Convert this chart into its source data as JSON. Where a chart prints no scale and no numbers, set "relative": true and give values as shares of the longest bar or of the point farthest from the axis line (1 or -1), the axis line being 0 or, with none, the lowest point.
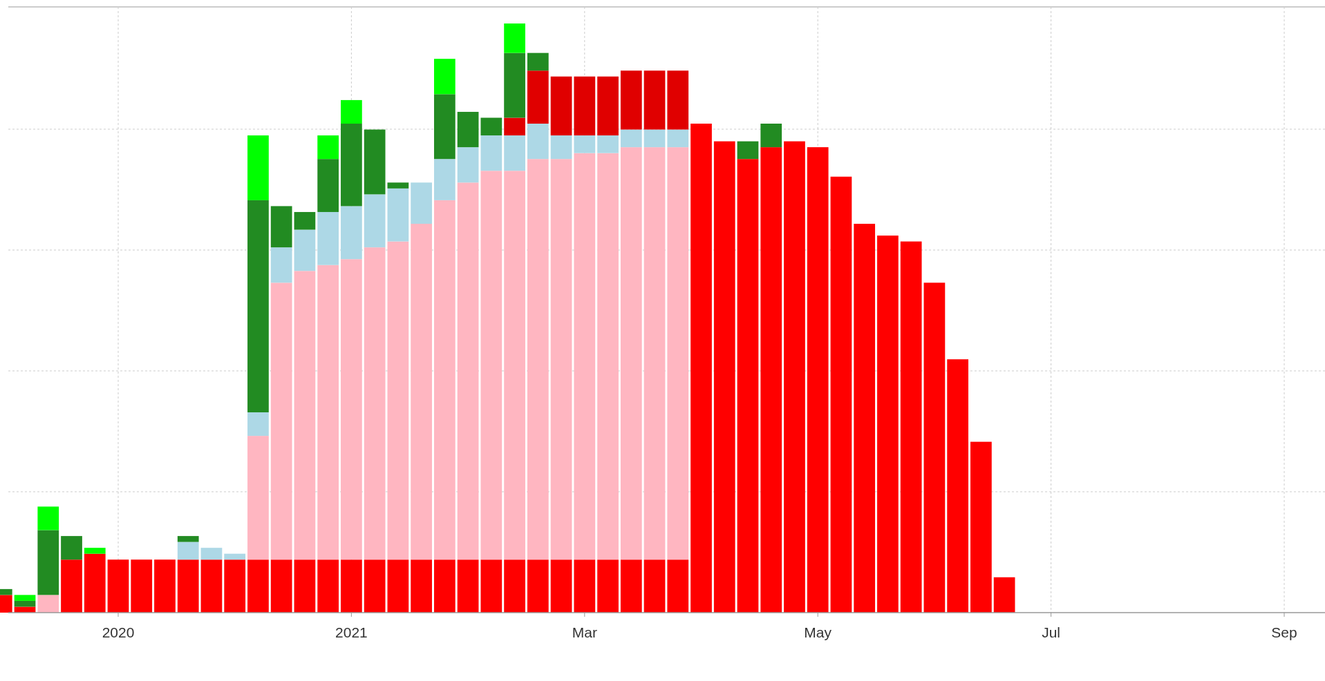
{
  "chart_data": {
    "type": "bar",
    "stacked": true,
    "relative": true,
    "grid": true,
    "categories": [
      null,
      null,
      null,
      null,
      null,
      "2020",
      null,
      null,
      null,
      null,
      null,
      null,
      null,
      null,
      null,
      "2021",
      null,
      null,
      null,
      null,
      null,
      null,
      null,
      null,
      null,
      "Mar",
      null,
      null,
      null,
      null,
      null,
      null,
      null,
      null,
      null,
      "May",
      null,
      null,
      null,
      null,
      null,
      null,
      null,
      null,
      null,
      "Jul",
      null,
      null,
      null,
      null,
      null,
      null,
      null,
      null,
      null,
      "Sep",
      null
    ],
    "series": [
      {
        "color": "#ff0000",
        "values": [
          0.03,
          0.01,
          0,
          0.09,
          0.1,
          0.09,
          0.09,
          0.09,
          0.09,
          0.09,
          0.09,
          0.09,
          0.09,
          0.09,
          0.09,
          0.09,
          0.09,
          0.09,
          0.09,
          0.09,
          0.09,
          0.09,
          0.09,
          0.09,
          0.09,
          0.09,
          0.09,
          0.09,
          0.09,
          0.09,
          0.83,
          0.8,
          0.77,
          0.79,
          0.8,
          0.79,
          0.74,
          0.66,
          0.64,
          0.63,
          0.56,
          0.43,
          0.29,
          0.06,
          0,
          0,
          0,
          0,
          0,
          0,
          0,
          0,
          0,
          0,
          0,
          0,
          0
        ]
      },
      {
        "color": "#ffb6c1",
        "values": [
          0,
          0,
          0.03,
          0,
          0,
          0,
          0,
          0,
          0,
          0,
          0,
          0.21,
          0.47,
          0.49,
          0.5,
          0.51,
          0.53,
          0.54,
          0.57,
          0.61,
          0.64,
          0.66,
          0.66,
          0.68,
          0.68,
          0.69,
          0.69,
          0.7,
          0.7,
          0.7,
          0,
          0,
          0,
          0,
          0,
          0,
          0,
          0,
          0,
          0,
          0,
          0,
          0,
          0,
          0,
          0,
          0,
          0,
          0,
          0,
          0,
          0,
          0,
          0,
          0,
          0,
          0
        ]
      },
      {
        "color": "#add8e6",
        "values": [
          0,
          0,
          0,
          0,
          0,
          0,
          0,
          0,
          0.03,
          0.02,
          0.01,
          0.04,
          0.06,
          0.07,
          0.09,
          0.09,
          0.09,
          0.09,
          0.07,
          0.07,
          0.06,
          0.06,
          0.06,
          0.06,
          0.04,
          0.03,
          0.03,
          0.03,
          0.03,
          0.03,
          0,
          0,
          0,
          0,
          0,
          0,
          0,
          0,
          0,
          0,
          0,
          0,
          0,
          0,
          0,
          0,
          0,
          0,
          0,
          0,
          0,
          0,
          0,
          0,
          0,
          0,
          0
        ]
      },
      {
        "color": "#e00000",
        "values": [
          0,
          0,
          0,
          0,
          0,
          0,
          0,
          0,
          0,
          0,
          0,
          0,
          0,
          0,
          0,
          0,
          0,
          0,
          0,
          0,
          0,
          0,
          0.03,
          0.09,
          0.1,
          0.1,
          0.1,
          0.1,
          0.1,
          0.1,
          0,
          0,
          0,
          0,
          0,
          0,
          0,
          0,
          0,
          0,
          0,
          0,
          0,
          0,
          0,
          0,
          0,
          0,
          0,
          0,
          0,
          0,
          0,
          0,
          0,
          0,
          0
        ]
      },
      {
        "color": "#228b22",
        "values": [
          0.01,
          0.01,
          0.11,
          0.04,
          0,
          0,
          0,
          0,
          0.01,
          0,
          0,
          0.36,
          0.07,
          0.03,
          0.09,
          0.14,
          0.11,
          0.01,
          0,
          0.11,
          0.06,
          0.03,
          0.11,
          0.03,
          0,
          0,
          0,
          0,
          0,
          0,
          0,
          0,
          0.03,
          0.04,
          0,
          0,
          0,
          0,
          0,
          0,
          0,
          0,
          0,
          0,
          0,
          0,
          0,
          0,
          0,
          0,
          0,
          0,
          0,
          0,
          0,
          0,
          0
        ]
      },
      {
        "color": "#00ff00",
        "values": [
          0,
          0.01,
          0.04,
          0,
          0.01,
          0,
          0,
          0,
          0,
          0,
          0,
          0.11,
          0,
          0,
          0.04,
          0.04,
          0,
          0,
          0,
          0.06,
          0,
          0,
          0.05,
          0,
          0,
          0,
          0,
          0,
          0,
          0,
          0,
          0,
          0,
          0,
          0,
          0,
          0,
          0,
          0,
          0,
          0,
          0,
          0,
          0,
          0,
          0,
          0,
          0,
          0,
          0,
          0,
          0,
          0,
          0,
          0,
          0,
          0
        ]
      }
    ]
  }
}
